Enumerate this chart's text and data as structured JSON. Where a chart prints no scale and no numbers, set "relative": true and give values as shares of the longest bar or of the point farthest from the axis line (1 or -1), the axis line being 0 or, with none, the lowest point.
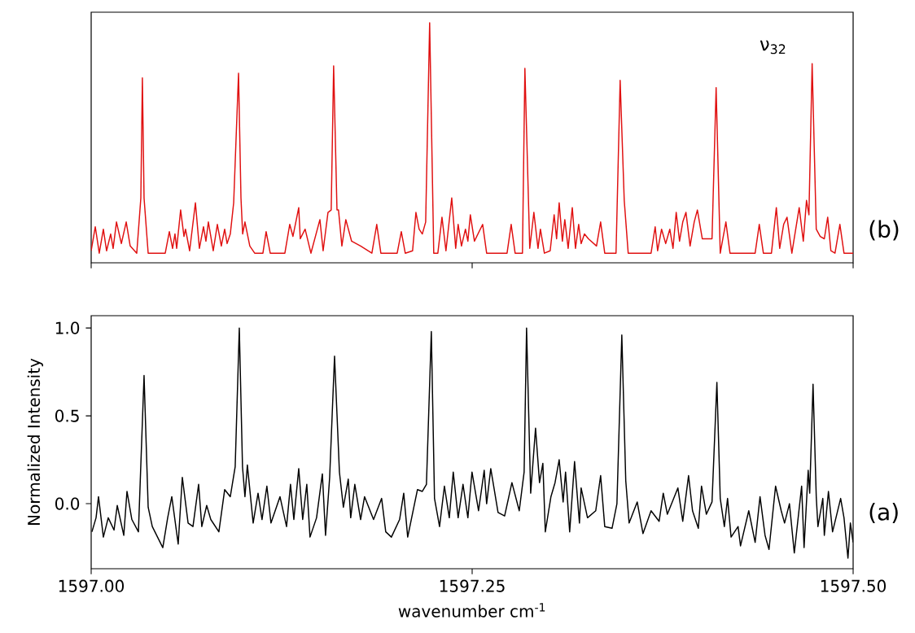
{
  "chart_data": [
    {
      "type": "line",
      "relative": true,
      "tick_labels": false,
      "xlim": [
        1597.0,
        1597.5
      ],
      "xticks": [
        1597.0,
        1597.25,
        1597.5
      ],
      "x": [
        1597.0,
        1597.0027,
        1597.0053,
        1597.008,
        1597.0101,
        1597.0128,
        1597.0144,
        1597.0166,
        1597.0198,
        1597.023,
        1597.0256,
        1597.0299,
        1597.0326,
        1597.0336,
        1597.0347,
        1597.0374,
        1597.0486,
        1597.0513,
        1597.0534,
        1597.055,
        1597.0561,
        1597.0587,
        1597.0609,
        1597.0619,
        1597.0646,
        1597.0684,
        1597.071,
        1597.0737,
        1597.0753,
        1597.0769,
        1597.0801,
        1597.0828,
        1597.0854,
        1597.0876,
        1597.0892,
        1597.0913,
        1597.0935,
        1597.0967,
        1597.0983,
        1597.0994,
        1597.1009,
        1597.1041,
        1597.1073,
        1597.1127,
        1597.1148,
        1597.1175,
        1597.1271,
        1597.1303,
        1597.1324,
        1597.1362,
        1597.1372,
        1597.1404,
        1597.1442,
        1597.1501,
        1597.1522,
        1597.1554,
        1597.1575,
        1597.1591,
        1597.1613,
        1597.1623,
        1597.1645,
        1597.1671,
        1597.1709,
        1597.1768,
        1597.1842,
        1597.1874,
        1597.1901,
        1597.2008,
        1597.2035,
        1597.2061,
        1597.2109,
        1597.2131,
        1597.2152,
        1597.2173,
        1597.2195,
        1597.2221,
        1597.2248,
        1597.2275,
        1597.2302,
        1597.2328,
        1597.2366,
        1597.2392,
        1597.2408,
        1597.243,
        1597.2456,
        1597.2472,
        1597.2488,
        1597.2515,
        1597.2569,
        1597.2595,
        1597.2729,
        1597.2756,
        1597.2782,
        1597.283,
        1597.2846,
        1597.2878,
        1597.2905,
        1597.2932,
        1597.2948,
        1597.2974,
        1597.3012,
        1597.3038,
        1597.3054,
        1597.3071,
        1597.3092,
        1597.3108,
        1597.313,
        1597.3157,
        1597.3178,
        1597.3199,
        1597.3215,
        1597.3237,
        1597.3263,
        1597.3316,
        1597.3343,
        1597.337,
        1597.3444,
        1597.3471,
        1597.3498,
        1597.3524,
        1597.3674,
        1597.3701,
        1597.3717,
        1597.3743,
        1597.377,
        1597.3797,
        1597.3818,
        1597.3839,
        1597.3861,
        1597.3882,
        1597.3903,
        1597.393,
        1597.3957,
        1597.3978,
        1597.401,
        1597.4074,
        1597.4101,
        1597.4128,
        1597.4165,
        1597.4192,
        1597.4357,
        1597.4384,
        1597.4411,
        1597.4464,
        1597.4496,
        1597.4518,
        1597.4544,
        1597.4566,
        1597.4598,
        1597.4646,
        1597.4673,
        1597.4694,
        1597.471,
        1597.4731,
        1597.4758,
        1597.4784,
        1597.4811,
        1597.4833,
        1597.4854,
        1597.4881,
        1597.4913,
        1597.494,
        1597.5
      ],
      "series": [
        {
          "color": "#e01010",
          "values": [
            0.05,
            0.15,
            0.04,
            0.14,
            0.05,
            0.12,
            0.06,
            0.17,
            0.08,
            0.17,
            0.07,
            0.04,
            0.27,
            0.77,
            0.27,
            0.04,
            0.04,
            0.13,
            0.06,
            0.12,
            0.06,
            0.22,
            0.11,
            0.14,
            0.05,
            0.25,
            0.06,
            0.15,
            0.09,
            0.17,
            0.05,
            0.16,
            0.07,
            0.14,
            0.08,
            0.12,
            0.25,
            0.79,
            0.27,
            0.12,
            0.17,
            0.07,
            0.04,
            0.04,
            0.13,
            0.04,
            0.04,
            0.16,
            0.11,
            0.23,
            0.1,
            0.14,
            0.04,
            0.18,
            0.05,
            0.21,
            0.22,
            0.82,
            0.22,
            0.22,
            0.07,
            0.18,
            0.09,
            0.07,
            0.04,
            0.16,
            0.04,
            0.04,
            0.13,
            0.04,
            0.05,
            0.21,
            0.14,
            0.12,
            0.17,
            1,
            0.04,
            0.04,
            0.19,
            0.05,
            0.27,
            0.06,
            0.16,
            0.07,
            0.14,
            0.09,
            0.2,
            0.09,
            0.16,
            0.04,
            0.04,
            0.16,
            0.04,
            0.04,
            0.81,
            0.06,
            0.21,
            0.06,
            0.14,
            0.04,
            0.05,
            0.2,
            0.1,
            0.25,
            0.09,
            0.18,
            0.06,
            0.23,
            0.06,
            0.16,
            0.08,
            0.12,
            0.1,
            0.07,
            0.17,
            0.04,
            0.04,
            0.76,
            0.26,
            0.04,
            0.04,
            0.15,
            0.05,
            0.14,
            0.08,
            0.14,
            0.06,
            0.21,
            0.09,
            0.17,
            0.21,
            0.07,
            0.17,
            0.22,
            0.1,
            0.1,
            0.73,
            0.04,
            0.17,
            0.04,
            0.04,
            0.16,
            0.04,
            0.04,
            0.23,
            0.06,
            0.16,
            0.19,
            0.04,
            0.23,
            0.09,
            0.26,
            0.2,
            0.83,
            0.14,
            0.11,
            0.1,
            0.19,
            0.05,
            0.04,
            0.16,
            0.04,
            0.04
          ]
        }
      ],
      "annotations": [
        "ν$_{32}$",
        "(b)"
      ]
    },
    {
      "type": "line",
      "xlabel": "wavenumber cm$^{-1}$",
      "ylabel": "Normalized Intensity",
      "xlim": [
        1597.0,
        1597.5
      ],
      "ylim": [
        -0.37,
        1.07
      ],
      "xticks": [
        {
          "value": 1597.0,
          "label": "1597.00"
        },
        {
          "value": 1597.25,
          "label": "1597.25"
        },
        {
          "value": 1597.5,
          "label": "1597.50"
        }
      ],
      "yticks": [
        {
          "value": 0,
          "label": "0.0"
        },
        {
          "value": 0.5,
          "label": "0.5"
        },
        {
          "value": 1,
          "label": "1.0"
        }
      ],
      "x": [
        1597.0005,
        1597.0032,
        1597.0048,
        1597.008,
        1597.0112,
        1597.015,
        1597.0171,
        1597.0214,
        1597.0235,
        1597.0267,
        1597.031,
        1597.0347,
        1597.0374,
        1597.0401,
        1597.047,
        1597.0502,
        1597.0529,
        1597.0571,
        1597.0598,
        1597.0636,
        1597.0668,
        1597.0705,
        1597.0726,
        1597.0758,
        1597.0785,
        1597.0838,
        1597.0876,
        1597.0913,
        1597.0945,
        1597.0972,
        1597.0993,
        1597.1009,
        1597.1025,
        1597.1063,
        1597.1095,
        1597.1121,
        1597.1153,
        1597.118,
        1597.1239,
        1597.1282,
        1597.1308,
        1597.133,
        1597.1362,
        1597.1388,
        1597.1415,
        1597.1436,
        1597.1479,
        1597.1517,
        1597.1538,
        1597.1565,
        1597.1597,
        1597.1629,
        1597.1655,
        1597.1687,
        1597.1703,
        1597.173,
        1597.1768,
        1597.1794,
        1597.1853,
        1597.1906,
        1597.1933,
        1597.197,
        1597.2024,
        1597.2051,
        1597.2077,
        1597.2141,
        1597.2173,
        1597.22,
        1597.2232,
        1597.2253,
        1597.2286,
        1597.2318,
        1597.235,
        1597.2376,
        1597.2408,
        1597.244,
        1597.2472,
        1597.2499,
        1597.2542,
        1597.2579,
        1597.2595,
        1597.2622,
        1597.267,
        1597.2713,
        1597.2761,
        1597.2809,
        1597.2841,
        1597.2857,
        1597.2884,
        1597.2916,
        1597.2942,
        1597.2964,
        1597.298,
        1597.3017,
        1597.3044,
        1597.3071,
        1597.3097,
        1597.3113,
        1597.314,
        1597.3172,
        1597.3204,
        1597.3215,
        1597.3257,
        1597.3311,
        1597.3343,
        1597.337,
        1597.3418,
        1597.345,
        1597.3482,
        1597.3508,
        1597.353,
        1597.3583,
        1597.3621,
        1597.3674,
        1597.3727,
        1597.3754,
        1597.3781,
        1597.385,
        1597.3882,
        1597.392,
        1597.3946,
        1597.3984,
        1597.4005,
        1597.4037,
        1597.4074,
        1597.4106,
        1597.4128,
        1597.4155,
        1597.4176,
        1597.4199,
        1597.4245,
        1597.4261,
        1597.4315,
        1597.4357,
        1597.4389,
        1597.4422,
        1597.4448,
        1597.4491,
        1597.4528,
        1597.455,
        1597.4582,
        1597.4614,
        1597.4662,
        1597.4678,
        1597.4705,
        1597.4715,
        1597.4737,
        1597.4758,
        1597.4769,
        1597.4801,
        1597.4811,
        1597.4838,
        1597.4865,
        1597.4918,
        1597.494,
        1597.4966,
        1597.4982,
        1597.5
      ],
      "series": [
        {
          "color": "#000000",
          "values": [
            -0.16,
            -0.08,
            0.04,
            -0.19,
            -0.08,
            -0.15,
            -0.01,
            -0.18,
            0.07,
            -0.09,
            -0.16,
            0.73,
            -0.02,
            -0.13,
            -0.25,
            -0.08,
            0.04,
            -0.23,
            0.15,
            -0.11,
            -0.13,
            0.11,
            -0.13,
            -0.01,
            -0.09,
            -0.16,
            0.08,
            0.04,
            0.21,
            1.0,
            0.21,
            0.04,
            0.22,
            -0.11,
            0.06,
            -0.09,
            0.1,
            -0.11,
            0.04,
            -0.13,
            0.11,
            -0.09,
            0.2,
            -0.09,
            0.11,
            -0.19,
            -0.08,
            0.17,
            -0.18,
            0.15,
            0.84,
            0.18,
            -0.02,
            0.14,
            -0.08,
            0.11,
            -0.09,
            0.04,
            -0.09,
            0.03,
            -0.16,
            -0.19,
            -0.09,
            0.06,
            -0.19,
            0.08,
            0.07,
            0.11,
            0.98,
            0.03,
            -0.13,
            0.1,
            -0.08,
            0.18,
            -0.08,
            0.11,
            -0.08,
            0.18,
            -0.04,
            0.19,
            0,
            0.2,
            -0.05,
            -0.07,
            0.12,
            -0.04,
            0.18,
            1.0,
            0.06,
            0.43,
            0.12,
            0.23,
            -0.16,
            0.04,
            0.12,
            0.25,
            0.01,
            0.18,
            -0.16,
            0.24,
            -0.11,
            0.09,
            -0.08,
            -0.04,
            0.16,
            -0.13,
            -0.14,
            0,
            0.96,
            0.13,
            -0.11,
            0.01,
            -0.17,
            -0.04,
            -0.1,
            0.06,
            -0.06,
            0.09,
            -0.1,
            0.16,
            -0.04,
            -0.14,
            0.1,
            -0.06,
            0.01,
            0.69,
            0.03,
            -0.13,
            0.03,
            -0.19,
            -0.13,
            -0.24,
            -0.04,
            -0.22,
            0.04,
            -0.18,
            -0.26,
            0.1,
            -0.04,
            -0.11,
            0,
            -0.28,
            0.1,
            -0.25,
            0.19,
            0.06,
            0.68,
            0.04,
            -0.13,
            0.03,
            -0.18,
            0.07,
            -0.16,
            0.03,
            -0.08,
            -0.31,
            -0.11,
            -0.22
          ]
        }
      ],
      "annotations": [
        "(a)"
      ]
    }
  ]
}
